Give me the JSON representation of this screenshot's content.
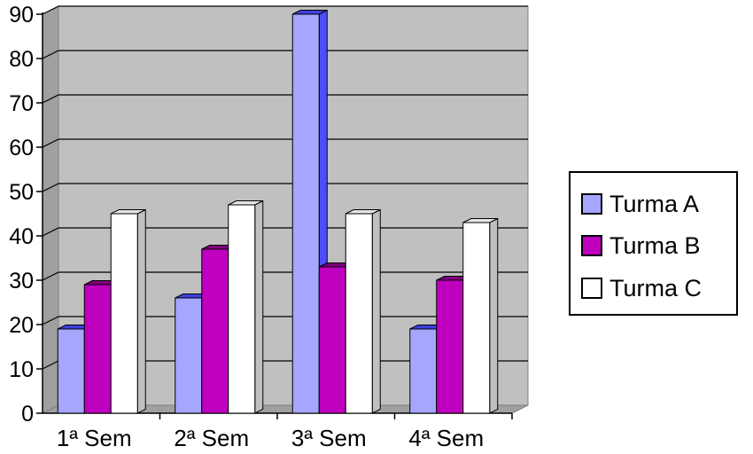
{
  "chart_data": {
    "type": "bar",
    "categories": [
      "1ª Sem",
      "2ª Sem",
      "3ª Sem",
      "4ª Sem"
    ],
    "series": [
      {
        "name": "Turma A",
        "values": [
          19,
          26,
          90,
          19
        ],
        "color": "#a6a6ff",
        "side_color": "#4d4dff",
        "top_color": "#4040e0"
      },
      {
        "name": "Turma B",
        "values": [
          29,
          37,
          33,
          30
        ],
        "color": "#bf00bf",
        "side_color": "#7a0a7a",
        "top_color": "#800080"
      },
      {
        "name": "Turma C",
        "values": [
          45,
          47,
          45,
          43
        ],
        "color": "#ffffff",
        "side_color": "#c0c0c0",
        "top_color": "#e6e6e6"
      }
    ],
    "y_ticks": [
      "0",
      "10",
      "20",
      "30",
      "40",
      "50",
      "60",
      "70",
      "80",
      "90"
    ],
    "ylim": [
      0,
      90
    ],
    "grid": true,
    "legend_position": "right",
    "wall_color": "#c0c0c0",
    "title": "",
    "xlabel": "",
    "ylabel": ""
  }
}
